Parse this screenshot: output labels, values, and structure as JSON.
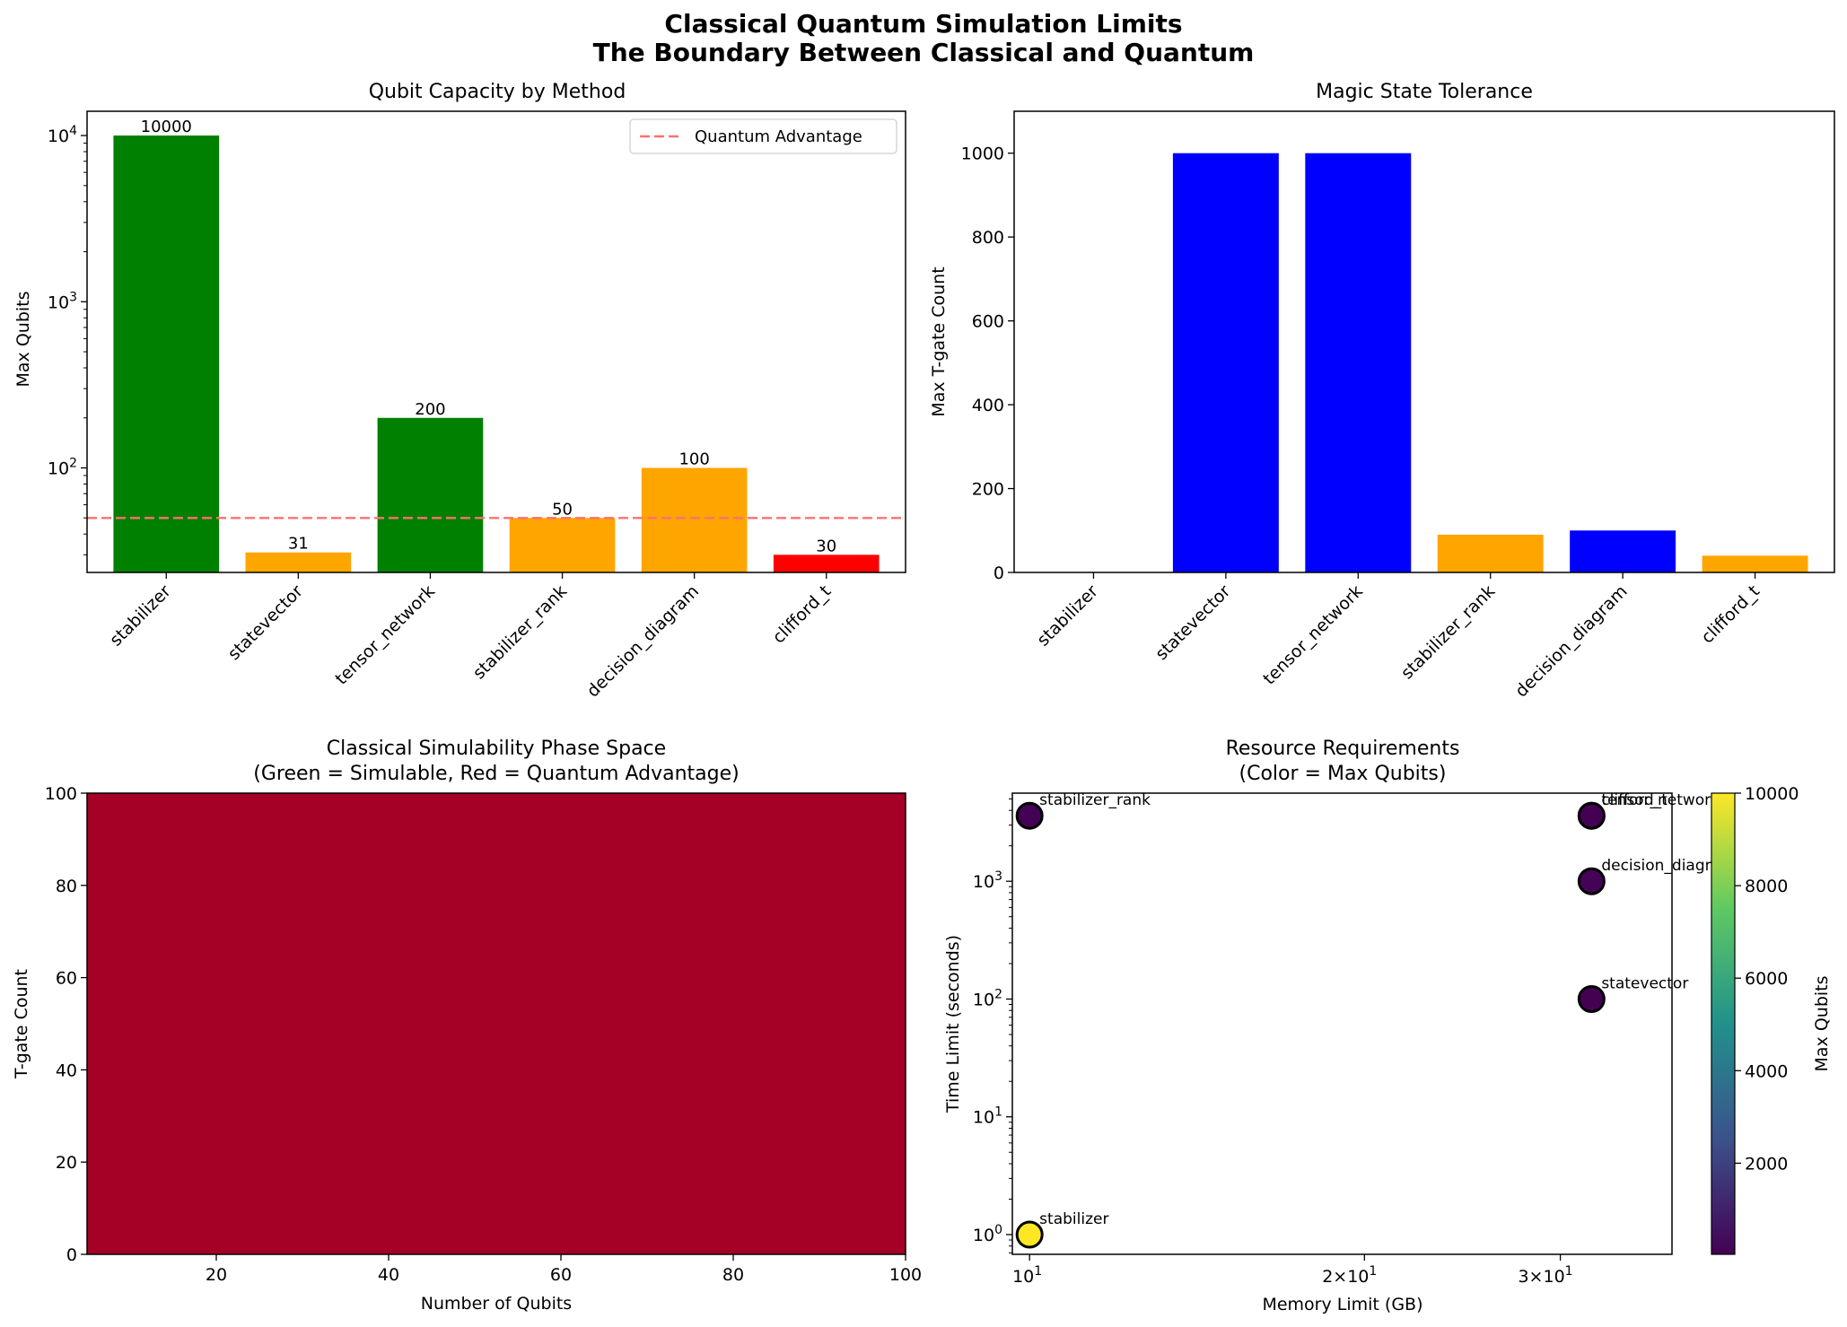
{
  "suptitle": [
    "Classical Quantum Simulation Limits",
    "The Boundary Between Classical and Quantum"
  ],
  "colors": {
    "simulable": "#008000",
    "partial": "#FFA500",
    "advantage": "#FF0000",
    "tgate_bar": "#0000FF",
    "threshold_line": "#FF7070",
    "phase_fill": "#A50026"
  },
  "chart_data": [
    {
      "id": "qubit-capacity",
      "type": "bar",
      "title": "Qubit Capacity by Method",
      "xlabel": "",
      "ylabel": "Max Qubits",
      "yscale": "log",
      "ylim": [
        23.5,
        14000
      ],
      "y_ticks": [
        {
          "value": 100,
          "base": "10",
          "exp": "2"
        },
        {
          "value": 1000,
          "base": "10",
          "exp": "3"
        },
        {
          "value": 10000,
          "base": "10",
          "exp": "4"
        }
      ],
      "categories": [
        "stabilizer",
        "statevector",
        "tensor_network",
        "stabilizer_rank",
        "decision_diagram",
        "clifford_t"
      ],
      "values": [
        10000,
        31,
        200,
        50,
        100,
        30
      ],
      "value_labels": [
        "10000",
        "31",
        "200",
        "50",
        "100",
        "30"
      ],
      "bar_colors": [
        "#008000",
        "#FFA500",
        "#008000",
        "#FFA500",
        "#FFA500",
        "#FF0000"
      ],
      "threshold": {
        "value": 50,
        "label": "Quantum Advantage"
      },
      "legend": {
        "placement": "top-right",
        "entries": [
          "Quantum Advantage"
        ]
      }
    },
    {
      "id": "magic-state",
      "type": "bar",
      "title": "Magic State Tolerance",
      "xlabel": "",
      "ylabel": "Max T-gate Count",
      "ylim": [
        0,
        1100
      ],
      "y_ticks": [
        0,
        200,
        400,
        600,
        800,
        1000
      ],
      "categories": [
        "stabilizer",
        "statevector",
        "tensor_network",
        "stabilizer_rank",
        "decision_diagram",
        "clifford_t"
      ],
      "values": [
        0,
        1000,
        1000,
        90,
        100,
        40
      ],
      "bar_colors": [
        "#0000FF",
        "#0000FF",
        "#0000FF",
        "#FFA500",
        "#0000FF",
        "#FFA500"
      ]
    },
    {
      "id": "phase-space",
      "type": "heatmap",
      "title": [
        "Classical Simulability Phase Space",
        "(Green = Simulable, Red = Quantum Advantage)"
      ],
      "xlabel": "Number of Qubits",
      "ylabel": "T-gate Count",
      "xlim": [
        5,
        100
      ],
      "ylim": [
        0,
        100
      ],
      "x_ticks": [
        20,
        40,
        60,
        80,
        100
      ],
      "y_ticks": [
        0,
        20,
        40,
        60,
        80,
        100
      ],
      "values": "all cells = Quantum Advantage"
    },
    {
      "id": "resources",
      "type": "scatter",
      "title": [
        "Resource Requirements",
        "(Color = Max Qubits)"
      ],
      "xlabel": "Memory Limit (GB)",
      "ylabel": "Time Limit (seconds)",
      "xscale": "log",
      "yscale": "log",
      "xlim": [
        9.65,
        37.8
      ],
      "ylim": [
        0.68,
        5600
      ],
      "x_ticks": [
        {
          "value": 10,
          "base": "10",
          "exp": "1",
          "mant": ""
        },
        {
          "value": 20,
          "base": "10",
          "exp": "1",
          "mant": "2×"
        },
        {
          "value": 30,
          "base": "10",
          "exp": "1",
          "mant": "3×"
        }
      ],
      "y_ticks": [
        {
          "value": 1,
          "base": "10",
          "exp": "0"
        },
        {
          "value": 10,
          "base": "10",
          "exp": "1"
        },
        {
          "value": 100,
          "base": "10",
          "exp": "2"
        },
        {
          "value": 1000,
          "base": "10",
          "exp": "3"
        }
      ],
      "points": [
        {
          "label": "stabilizer",
          "x": 10,
          "y": 1,
          "qubits": 10000
        },
        {
          "label": "statevector",
          "x": 32,
          "y": 100,
          "qubits": 31
        },
        {
          "label": "tensor_network",
          "x": 32,
          "y": 3600,
          "qubits": 200
        },
        {
          "label": "stabilizer_rank",
          "x": 10,
          "y": 3600,
          "qubits": 50
        },
        {
          "label": "decision_diagram",
          "x": 32,
          "y": 1000,
          "qubits": 100
        },
        {
          "label": "clifford_t",
          "x": 32,
          "y": 3600,
          "qubits": 30
        }
      ],
      "colorbar": {
        "label": "Max Qubits",
        "range": [
          30,
          10000
        ],
        "ticks": [
          2000,
          4000,
          6000,
          8000,
          10000
        ],
        "colormap": "viridis"
      }
    }
  ]
}
